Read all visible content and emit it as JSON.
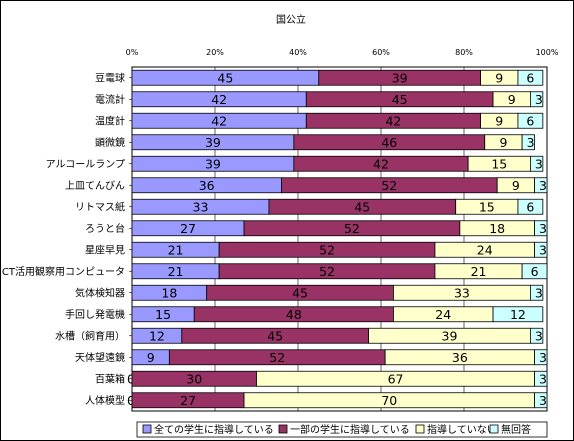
{
  "chart_data": {
    "type": "bar",
    "orientation": "horizontal",
    "stacked": true,
    "percent": true,
    "title": "国公立",
    "xlim": [
      0,
      100
    ],
    "x_ticks": [
      "0%",
      "20%",
      "40%",
      "60%",
      "80%",
      "100%"
    ],
    "legend_position": "bottom",
    "grid": true,
    "categories": [
      "豆電球",
      "電流計",
      "温度計",
      "顕微鏡",
      "アルコールランプ",
      "上皿てんびん",
      "リトマス紙",
      "ろうと台",
      "星座早見",
      "ICT活用観察用コンピュータ",
      "気体検知器",
      "手回し発電機",
      "水槽（飼育用）",
      "天体望遠鏡",
      "百葉箱",
      "人体模型"
    ],
    "series": [
      {
        "name": "全ての学生に指導している",
        "color": "#9999ff",
        "values": [
          45,
          42,
          42,
          39,
          39,
          36,
          33,
          27,
          21,
          21,
          18,
          15,
          12,
          9,
          0,
          0
        ]
      },
      {
        "name": "一部の学生に指導している",
        "color": "#993366",
        "values": [
          39,
          45,
          42,
          46,
          42,
          52,
          45,
          52,
          52,
          52,
          45,
          48,
          45,
          52,
          30,
          27
        ]
      },
      {
        "name": "指導していない",
        "color": "#ffffcc",
        "values": [
          9,
          9,
          9,
          9,
          15,
          9,
          15,
          18,
          24,
          21,
          33,
          24,
          39,
          36,
          67,
          70
        ]
      },
      {
        "name": "無回答",
        "color": "#ccffff",
        "values": [
          6,
          3,
          6,
          3,
          3,
          3,
          6,
          3,
          3,
          6,
          3,
          12,
          3,
          3,
          3,
          3
        ]
      }
    ],
    "data_labels": [
      [
        "45",
        "39",
        "9",
        "6"
      ],
      [
        "42",
        "45",
        "9",
        "3"
      ],
      [
        "42",
        "42",
        "9",
        "6"
      ],
      [
        "39",
        "46",
        "9",
        "3"
      ],
      [
        "39",
        "42",
        "15",
        "3"
      ],
      [
        "36",
        "52",
        "9",
        "3"
      ],
      [
        "33",
        "45",
        "15",
        "6"
      ],
      [
        "27",
        "52",
        "18",
        "3"
      ],
      [
        "21",
        "52",
        "24",
        "3"
      ],
      [
        "21",
        "52",
        "21",
        "6"
      ],
      [
        "18",
        "45",
        "33",
        "3"
      ],
      [
        "15",
        "48",
        "24",
        "12"
      ],
      [
        "12",
        "45",
        "39",
        "3"
      ],
      [
        "9",
        "52",
        "36",
        "3"
      ],
      [
        "0",
        "30",
        "67",
        "3"
      ],
      [
        "0",
        "27",
        "70",
        "3"
      ]
    ]
  }
}
